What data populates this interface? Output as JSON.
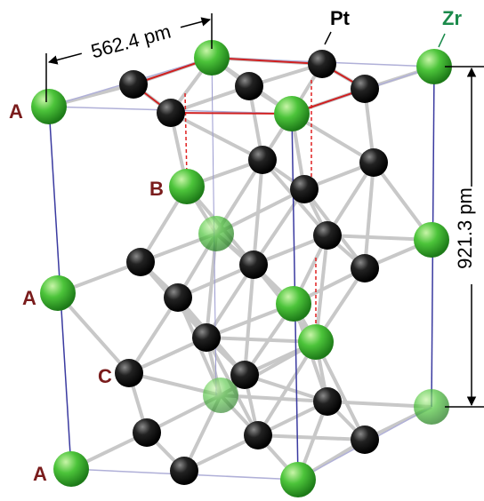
{
  "dimensions": {
    "a": "562.4 pm",
    "c": "921.3 pm"
  },
  "elements": {
    "pt": "Pt",
    "zr": "Zr"
  },
  "layers": [
    "A",
    "B",
    "A",
    "C",
    "A"
  ]
}
